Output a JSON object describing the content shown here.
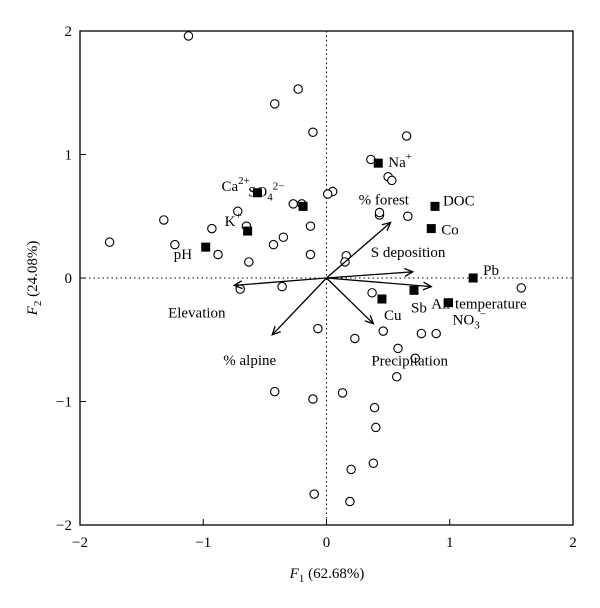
{
  "chart_data": {
    "type": "scatter",
    "title": "",
    "xlabel": {
      "var": "F",
      "sub": "1",
      "rest": " (62.68%)"
    },
    "ylabel": {
      "var": "F",
      "sub": "2",
      "rest": " (24.08%)"
    },
    "xlim": [
      -2,
      2
    ],
    "ylim": [
      -2,
      2
    ],
    "xticks": [
      "−2",
      "−1",
      "0",
      "1",
      "2"
    ],
    "yticks": [
      "−2",
      "−1",
      "0",
      "1",
      "2"
    ],
    "xtick_values": [
      -2,
      -1,
      0,
      1,
      2
    ],
    "ytick_values": [
      -2,
      -1,
      0,
      1,
      2
    ],
    "grid": false,
    "zero_lines": "dotted",
    "sites": [
      [
        -1.12,
        1.96
      ],
      [
        -0.42,
        1.41
      ],
      [
        -0.23,
        1.53
      ],
      [
        -0.11,
        1.18
      ],
      [
        0.36,
        0.96
      ],
      [
        0.65,
        1.15
      ],
      [
        0.5,
        0.82
      ],
      [
        0.53,
        0.79
      ],
      [
        0.05,
        0.7
      ],
      [
        0.01,
        0.68
      ],
      [
        -0.27,
        0.6
      ],
      [
        -0.2,
        0.6
      ],
      [
        -0.72,
        0.54
      ],
      [
        -1.32,
        0.47
      ],
      [
        -0.93,
        0.4
      ],
      [
        -0.65,
        0.42
      ],
      [
        -0.35,
        0.33
      ],
      [
        -0.13,
        0.42
      ],
      [
        0.43,
        0.51
      ],
      [
        0.43,
        0.53
      ],
      [
        0.66,
        0.5
      ],
      [
        -1.76,
        0.29
      ],
      [
        -1.23,
        0.27
      ],
      [
        -0.43,
        0.27
      ],
      [
        -0.88,
        0.19
      ],
      [
        -0.63,
        0.13
      ],
      [
        -0.13,
        0.19
      ],
      [
        0.16,
        0.18
      ],
      [
        0.15,
        0.13
      ],
      [
        -0.7,
        -0.09
      ],
      [
        -0.36,
        -0.07
      ],
      [
        -0.07,
        -0.41
      ],
      [
        0.37,
        -0.12
      ],
      [
        0.46,
        -0.43
      ],
      [
        0.23,
        -0.49
      ],
      [
        0.58,
        -0.57
      ],
      [
        0.77,
        -0.45
      ],
      [
        0.89,
        -0.45
      ],
      [
        0.72,
        -0.65
      ],
      [
        0.57,
        -0.8
      ],
      [
        1.58,
        -0.08
      ],
      [
        -0.42,
        -0.92
      ],
      [
        -0.11,
        -0.98
      ],
      [
        0.13,
        -0.93
      ],
      [
        0.39,
        -1.05
      ],
      [
        0.4,
        -1.21
      ],
      [
        0.38,
        -1.5
      ],
      [
        0.2,
        -1.55
      ],
      [
        -0.1,
        -1.75
      ],
      [
        0.19,
        -1.81
      ]
    ],
    "variables": [
      {
        "name": "DOC",
        "x": 0.88,
        "y": 0.58
      },
      {
        "name": "Co",
        "x": 0.85,
        "y": 0.4
      },
      {
        "name": "Na+",
        "x": 0.42,
        "y": 0.93
      },
      {
        "name": "Ca2+",
        "x": -0.56,
        "y": 0.69
      },
      {
        "name": "SO42−",
        "x": -0.19,
        "y": 0.58
      },
      {
        "name": "K+",
        "x": -0.64,
        "y": 0.38
      },
      {
        "name": "pH",
        "x": -0.98,
        "y": 0.25
      },
      {
        "name": "Pb",
        "x": 1.19,
        "y": 0.0
      },
      {
        "name": "Sb",
        "x": 0.71,
        "y": -0.1
      },
      {
        "name": "Cu",
        "x": 0.45,
        "y": -0.17
      },
      {
        "name": "NO3−",
        "x": 0.99,
        "y": -0.2
      }
    ],
    "vectors": [
      {
        "name": "% forest",
        "x": 0.52,
        "y": 0.45
      },
      {
        "name": "S deposition",
        "x": 0.7,
        "y": 0.05
      },
      {
        "name": "Air temperature",
        "x": 0.85,
        "y": -0.07
      },
      {
        "name": "Precipitation",
        "x": 0.38,
        "y": -0.37
      },
      {
        "name": "% alpine",
        "x": -0.44,
        "y": -0.46
      },
      {
        "name": "Elevation",
        "x": -0.75,
        "y": -0.06
      }
    ]
  }
}
